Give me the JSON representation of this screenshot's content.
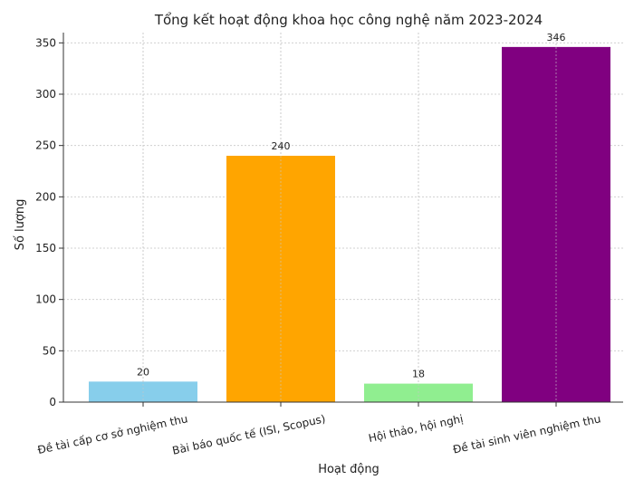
{
  "chart_data": {
    "type": "bar",
    "title": "Tổng kết hoạt động khoa học công nghệ năm 2023-2024",
    "xlabel": "Hoạt động",
    "ylabel": "Số lượng",
    "categories": [
      "Đề tài cấp cơ sở nghiệm thu",
      "Bài báo quốc tế (ISI, Scopus)",
      "Hội thảo, hội nghị",
      "Đề tài sinh viên nghiệm thu"
    ],
    "values": [
      20,
      240,
      18,
      346
    ],
    "data_labels": [
      "20",
      "240",
      "18",
      "346"
    ],
    "colors": [
      "#87CEEB",
      "#FFA500",
      "#90EE90",
      "#800080"
    ],
    "ylim": [
      0,
      360
    ],
    "yticks": [
      0,
      50,
      100,
      150,
      200,
      250,
      300,
      350
    ],
    "grid": true
  }
}
